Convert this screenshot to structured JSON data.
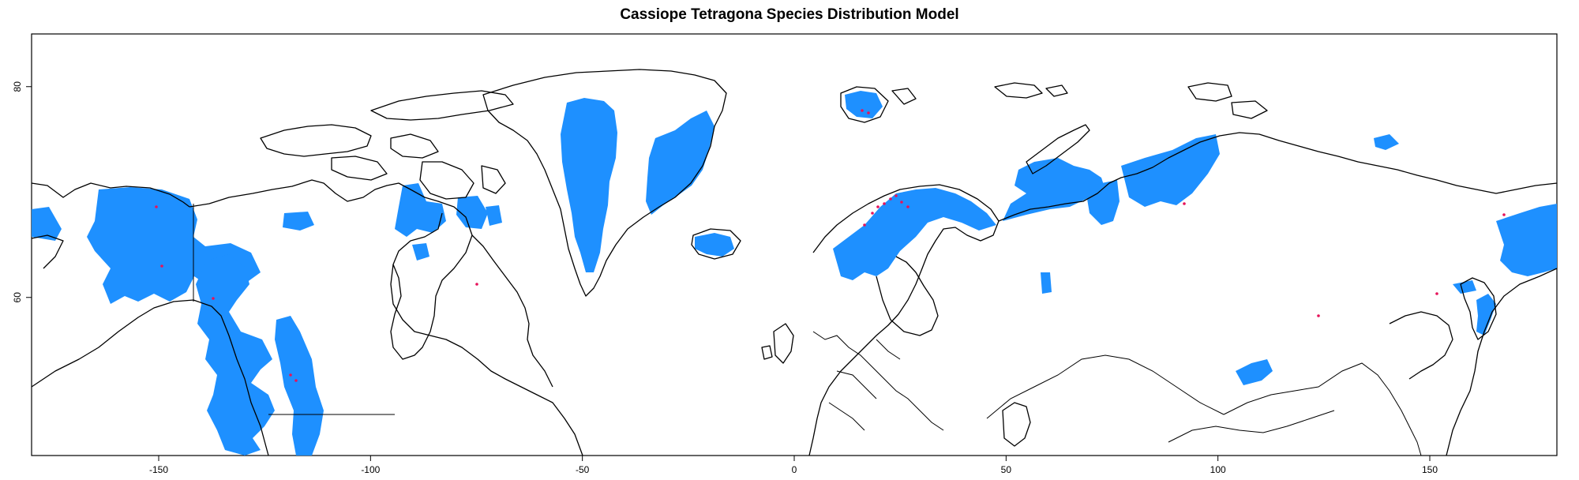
{
  "title": "Cassiope Tetragona Species Distribution Model",
  "colors": {
    "suitable_habitat": "#1e90ff",
    "occurrence_points": "#e6135a",
    "coastlines_borders": "#000000",
    "background": "#ffffff"
  },
  "map": {
    "projection": "longitude/latitude (equirectangular)",
    "lon_range": [
      -180,
      180
    ],
    "lat_range": [
      45,
      85
    ],
    "x_axis": {
      "ticks": [
        -150,
        -100,
        -50,
        0,
        50,
        100,
        150
      ],
      "labels": [
        "-150",
        "-100",
        "-50",
        "0",
        "50",
        "100",
        "150"
      ]
    },
    "y_axis": {
      "ticks": [
        60,
        80
      ],
      "labels": [
        "60",
        "80"
      ]
    },
    "layers": [
      "suitable habitat raster",
      "occurrence points",
      "coastlines and country borders"
    ]
  }
}
